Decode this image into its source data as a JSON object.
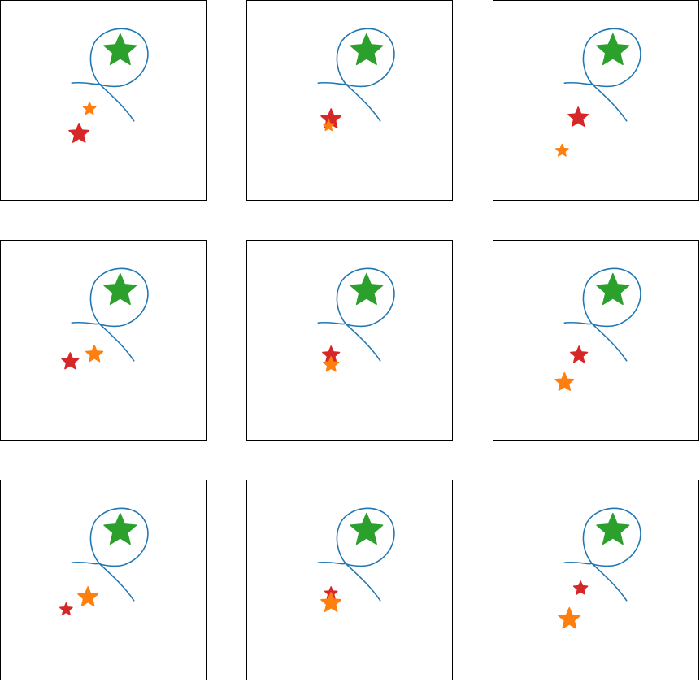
{
  "colors": {
    "curve": "#1f77b4",
    "goal_star": "#2ca02c",
    "red_star": "#d62728",
    "orange_star": "#ff7f0e",
    "frame": "#000000"
  },
  "icons": {
    "goal": "star-icon",
    "red": "star-icon",
    "orange": "star-icon"
  },
  "panels": [
    {
      "row": 0,
      "col": 0,
      "red": {
        "x": 97,
        "y": 165,
        "size": 13
      },
      "orange": {
        "x": 110,
        "y": 134,
        "size": 8
      }
    },
    {
      "row": 0,
      "col": 1,
      "red": {
        "x": 104,
        "y": 147,
        "size": 13
      },
      "orange": {
        "x": 101,
        "y": 155,
        "size": 7
      }
    },
    {
      "row": 0,
      "col": 2,
      "red": {
        "x": 105,
        "y": 145,
        "size": 13
      },
      "orange": {
        "x": 85,
        "y": 186,
        "size": 8
      }
    },
    {
      "row": 1,
      "col": 0,
      "red": {
        "x": 86,
        "y": 150,
        "size": 11
      },
      "orange": {
        "x": 116,
        "y": 141,
        "size": 11
      }
    },
    {
      "row": 1,
      "col": 1,
      "red": {
        "x": 104,
        "y": 142,
        "size": 11
      },
      "orange": {
        "x": 104,
        "y": 154,
        "size": 10
      }
    },
    {
      "row": 1,
      "col": 2,
      "red": {
        "x": 106,
        "y": 142,
        "size": 11
      },
      "orange": {
        "x": 88,
        "y": 176,
        "size": 12
      }
    },
    {
      "row": 2,
      "col": 0,
      "red": {
        "x": 81,
        "y": 160,
        "size": 8
      },
      "orange": {
        "x": 108,
        "y": 145,
        "size": 13
      }
    },
    {
      "row": 2,
      "col": 1,
      "red": {
        "x": 104,
        "y": 140,
        "size": 8
      },
      "orange": {
        "x": 104,
        "y": 152,
        "size": 13
      }
    },
    {
      "row": 2,
      "col": 2,
      "red": {
        "x": 108,
        "y": 134,
        "size": 9
      },
      "orange": {
        "x": 94,
        "y": 172,
        "size": 14
      }
    }
  ]
}
